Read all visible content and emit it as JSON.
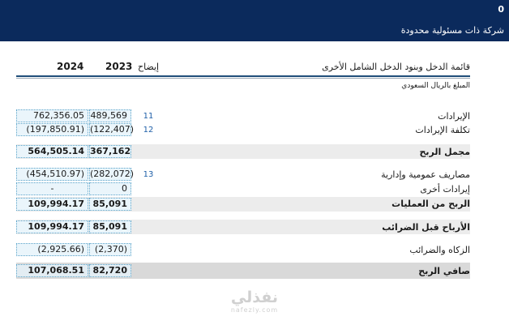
{
  "header": {
    "number": "0",
    "company": "شركة ذات مسئولية محدودة"
  },
  "statement": {
    "title": "قائمة الدخل وبنود الدخل الشامل الأخرى",
    "currency_note": "المبلغ بالريال السعودي",
    "col_note": "إيضاح",
    "col_2023": "2023",
    "col_2024": "2024"
  },
  "rows": [
    {
      "label": "الإيرادات",
      "note": "11",
      "v2023": "489,569",
      "v2024": "762,356.05"
    },
    {
      "label": "تكلفة الإيرادات",
      "note": "12",
      "v2023": "(122,407)",
      "v2024": "(197,850.91)"
    },
    {
      "label": "مجمل الربح",
      "note": "",
      "v2023": "367,162",
      "v2024": "564,505.14"
    },
    {
      "label": "مصاريف عمومية وإدارية",
      "note": "13",
      "v2023": "(282,072)",
      "v2024": "(454,510.97)"
    },
    {
      "label": "إيرادات أخرى",
      "note": "",
      "v2023": "0",
      "v2024": "-"
    },
    {
      "label": "الربح من العمليات",
      "note": "",
      "v2023": "85,091",
      "v2024": "109,994.17"
    },
    {
      "label": "الأرباح قبل الضرائب",
      "note": "",
      "v2023": "85,091",
      "v2024": "109,994.17"
    },
    {
      "label": "الزكاه والضرائب",
      "note": "",
      "v2023": "(2,370)",
      "v2024": "(2,925.66)"
    },
    {
      "label": "صافي الربح",
      "note": "",
      "v2023": "82,720",
      "v2024": "107,068.51"
    }
  ],
  "watermark": {
    "text": "نفذلي",
    "domain": "nafezly.com"
  },
  "colors": {
    "header_bg": "#0b2a5c",
    "note_blue": "#1f5fa8",
    "cell_border": "#5aa3c9"
  }
}
